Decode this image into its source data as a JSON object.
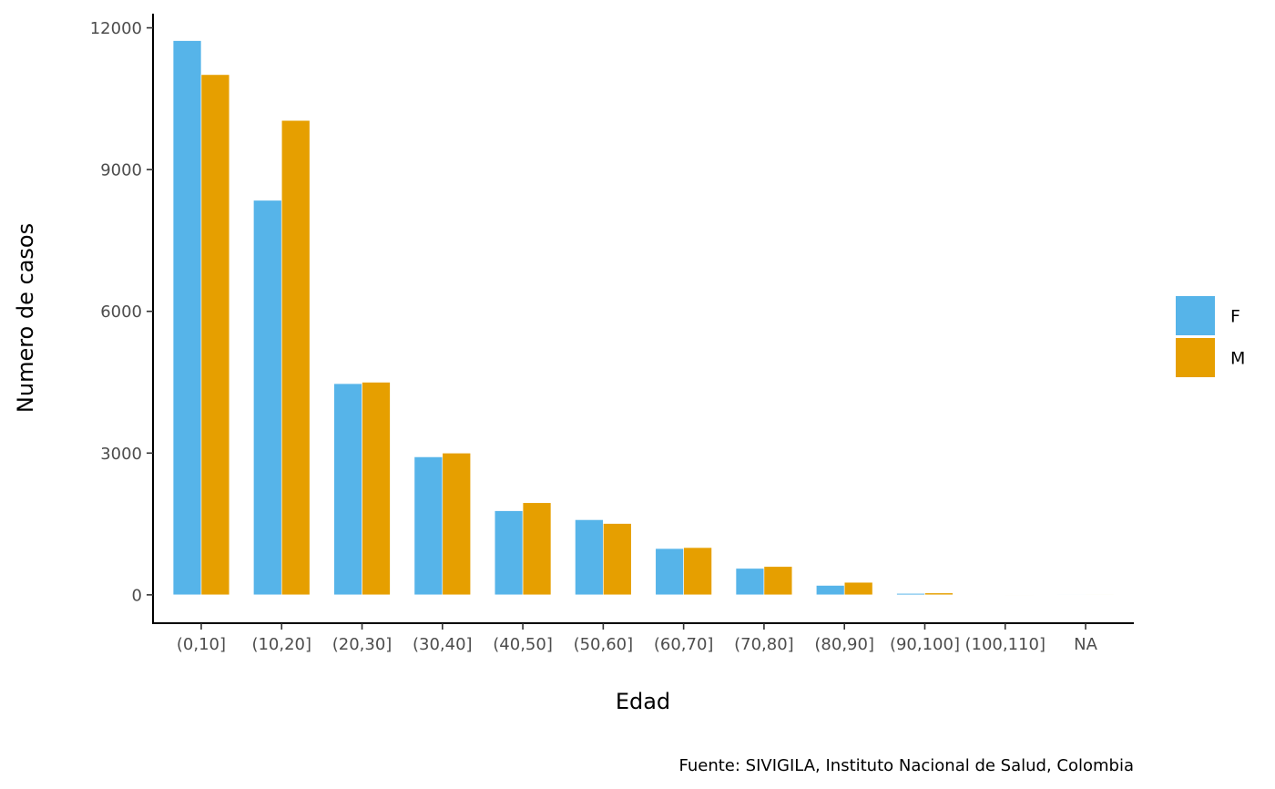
{
  "chart_data": {
    "type": "bar",
    "xlabel": "Edad",
    "ylabel": "Numero de casos",
    "caption": "Fuente: SIVIGILA, Instituto Nacional de Salud, Colombia",
    "categories": [
      "(0,10]",
      "(10,20]",
      "(20,30]",
      "(30,40]",
      "(40,50]",
      "(50,60]",
      "(60,70]",
      "(70,80]",
      "(80,90]",
      "(90,100]",
      "(100,110]",
      "NA"
    ],
    "series": [
      {
        "name": "F",
        "color": "#56B4E9",
        "values": [
          11730,
          8350,
          4470,
          2920,
          1780,
          1590,
          980,
          560,
          200,
          30,
          5,
          0
        ]
      },
      {
        "name": "M",
        "color": "#E69F00",
        "values": [
          11010,
          10040,
          4500,
          3000,
          1950,
          1510,
          1000,
          600,
          265,
          40,
          6,
          0
        ]
      }
    ],
    "yticks": [
      0,
      3000,
      6000,
      9000,
      12000
    ],
    "ylim": [
      -600,
      12300
    ],
    "grid": false,
    "legend_position": "right"
  }
}
